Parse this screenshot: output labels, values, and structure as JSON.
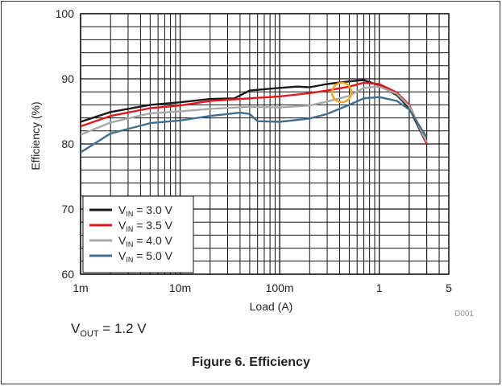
{
  "chart_data": {
    "type": "line",
    "xscale": "log",
    "xlim": [
      0.001,
      5
    ],
    "ylim": [
      60,
      100
    ],
    "xlabel": "Load (A)",
    "ylabel": "Efficiency (%)",
    "x_tick_labels": [
      "1m",
      "10m",
      "100m",
      "1",
      "5"
    ],
    "x_tick_values": [
      0.001,
      0.01,
      0.1,
      1,
      5
    ],
    "y_ticks": [
      60,
      70,
      80,
      90,
      100
    ],
    "grid": true,
    "legend_position": "bottom-left",
    "figure_id": "D001",
    "series": [
      {
        "name": "VIN = 3.0 V",
        "name_parts": {
          "prefix": "V",
          "sub": "IN",
          "suffix": " = 3.0 V"
        },
        "color": "#1a1a1a",
        "points": [
          [
            0.001,
            83.4
          ],
          [
            0.002,
            84.9
          ],
          [
            0.005,
            86.0
          ],
          [
            0.01,
            86.4
          ],
          [
            0.02,
            86.9
          ],
          [
            0.035,
            87.0
          ],
          [
            0.05,
            88.2
          ],
          [
            0.1,
            88.6
          ],
          [
            0.15,
            88.8
          ],
          [
            0.2,
            88.7
          ],
          [
            0.3,
            89.2
          ],
          [
            0.5,
            89.6
          ],
          [
            0.7,
            89.8
          ],
          [
            1.0,
            89.0
          ],
          [
            1.5,
            87.5
          ],
          [
            2.0,
            85.5
          ],
          [
            3.0,
            80.0
          ]
        ]
      },
      {
        "name": "VIN = 3.5 V",
        "name_parts": {
          "prefix": "V",
          "sub": "IN",
          "suffix": " = 3.5 V"
        },
        "color": "#e0191f",
        "points": [
          [
            0.001,
            82.7
          ],
          [
            0.002,
            84.3
          ],
          [
            0.005,
            85.5
          ],
          [
            0.01,
            85.9
          ],
          [
            0.02,
            86.6
          ],
          [
            0.05,
            87.0
          ],
          [
            0.1,
            87.3
          ],
          [
            0.2,
            87.8
          ],
          [
            0.3,
            88.2
          ],
          [
            0.5,
            88.8
          ],
          [
            0.7,
            89.4
          ],
          [
            1.0,
            89.2
          ],
          [
            1.5,
            87.9
          ],
          [
            2.0,
            86.0
          ],
          [
            3.0,
            80.0
          ]
        ]
      },
      {
        "name": "VIN = 4.0 V",
        "name_parts": {
          "prefix": "V",
          "sub": "IN",
          "suffix": " = 4.0 V"
        },
        "color": "#a9a9a9",
        "points": [
          [
            0.001,
            81.4
          ],
          [
            0.002,
            83.3
          ],
          [
            0.005,
            84.7
          ],
          [
            0.01,
            85.0
          ],
          [
            0.02,
            85.4
          ],
          [
            0.05,
            85.7
          ],
          [
            0.1,
            85.6
          ],
          [
            0.2,
            85.9
          ],
          [
            0.3,
            86.5
          ],
          [
            0.5,
            87.4
          ],
          [
            0.7,
            88.6
          ],
          [
            1.0,
            88.8
          ],
          [
            1.5,
            87.7
          ],
          [
            2.0,
            85.8
          ],
          [
            3.0,
            80.3
          ]
        ]
      },
      {
        "name": "VIN = 5.0 V",
        "name_parts": {
          "prefix": "V",
          "sub": "IN",
          "suffix": " = 5.0 V"
        },
        "color": "#3f6f8f",
        "points": [
          [
            0.001,
            78.7
          ],
          [
            0.002,
            81.6
          ],
          [
            0.005,
            83.2
          ],
          [
            0.01,
            83.6
          ],
          [
            0.02,
            84.3
          ],
          [
            0.04,
            84.8
          ],
          [
            0.05,
            84.6
          ],
          [
            0.06,
            83.5
          ],
          [
            0.1,
            83.4
          ],
          [
            0.2,
            83.9
          ],
          [
            0.3,
            84.6
          ],
          [
            0.5,
            86.0
          ],
          [
            0.7,
            87.0
          ],
          [
            1.0,
            87.2
          ],
          [
            1.5,
            86.6
          ],
          [
            2.0,
            85.3
          ],
          [
            3.0,
            81.0
          ]
        ]
      }
    ],
    "highlight_marker": {
      "x": 0.42,
      "y": 87.9,
      "color": "#f5a623"
    }
  },
  "caption": "Figure 6. Efficiency",
  "vout_label": {
    "prefix": "V",
    "sub": "OUT",
    "suffix": " = 1.2 V"
  }
}
